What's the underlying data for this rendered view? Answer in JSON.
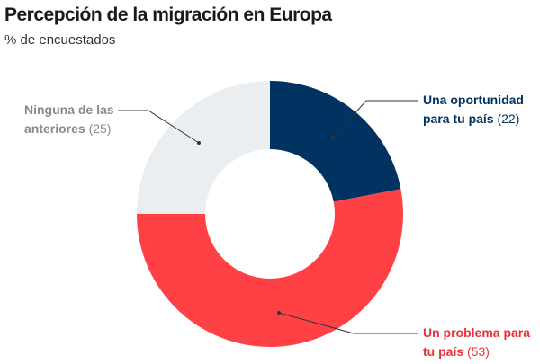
{
  "title": "Percepción de la migración en Europa",
  "subtitle": "% de encuestados",
  "chart_data": {
    "type": "pie",
    "donut": true,
    "title": "Percepción de la migración en Europa",
    "subtitle": "% de encuestados",
    "slices": [
      {
        "label": "Una oportunidad para tu país",
        "line1": "Una oportunidad",
        "line2": "para tu país",
        "value": 22,
        "value_text": "(22)",
        "color": "#003361"
      },
      {
        "label": "Un problema para tu país",
        "line1": "Un problema para",
        "line2": "tu país",
        "value": 53,
        "value_text": "(53)",
        "color": "#ff4146"
      },
      {
        "label": "Ninguna de las anteriores",
        "line1": "Ninguna de las",
        "line2": "anteriores",
        "value": 25,
        "value_text": "(25)",
        "color": "#ebeef0"
      }
    ],
    "label_colors": [
      "#003361",
      "#e8323a",
      "#8a8a8a"
    ]
  }
}
